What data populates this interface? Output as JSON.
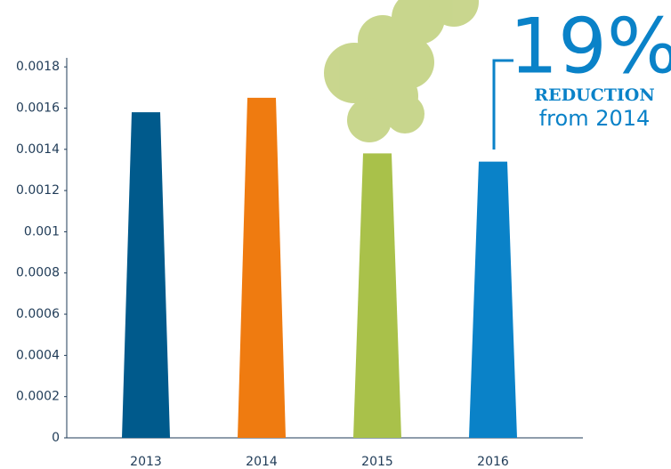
{
  "chart_data": {
    "type": "bar",
    "categories": [
      "2013",
      "2014",
      "2015",
      "2016"
    ],
    "series": [
      {
        "name": null,
        "colors": [
          "#005a8c",
          "#ef7b10",
          "#a9c14a",
          "#0a82c8"
        ],
        "values": [
          0.00158,
          0.00165,
          0.00138,
          0.00134
        ]
      }
    ],
    "ylim": [
      0,
      0.0019
    ],
    "yticks": [
      0,
      0.0002,
      0.0004,
      0.0006,
      0.0008,
      0.001,
      0.0012,
      0.0014,
      0.0016,
      0.0018
    ],
    "annotation": {
      "value_text": "19%",
      "line1": "REDUCTION",
      "line2": "from 2014",
      "color": "#0a82c8"
    }
  }
}
